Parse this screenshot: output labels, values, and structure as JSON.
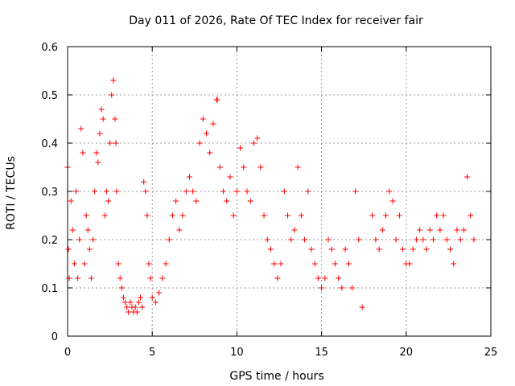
{
  "chart_data": {
    "type": "scatter",
    "title": "Day 011 of 2026, Rate Of TEC Index for receiver fair",
    "xlabel": "GPS time / hours",
    "ylabel": "ROTI / TECUs",
    "xlim": [
      0,
      25
    ],
    "ylim": [
      0,
      0.6
    ],
    "xticks": [
      0,
      5,
      10,
      15,
      20,
      25
    ],
    "yticks": [
      0,
      0.1,
      0.2,
      0.3,
      0.4,
      0.5,
      0.6
    ],
    "xtick_labels": [
      "0",
      "5",
      "10",
      "15",
      "20",
      "25"
    ],
    "ytick_labels": [
      "0",
      "0.1",
      "0.2",
      "0.3",
      "0.4",
      "0.5",
      "0.6"
    ],
    "grid": true,
    "grid_style": "dotted",
    "marker": "+",
    "color": "#ff0000",
    "series": [
      {
        "x": [
          0.0,
          0.05,
          0.1,
          0.2,
          0.3,
          0.4,
          0.5,
          0.6,
          0.7,
          0.8,
          0.9,
          1.0,
          1.1,
          1.2,
          1.3,
          1.4,
          1.5,
          1.6,
          1.7,
          1.8,
          1.9,
          2.0,
          2.1,
          2.2,
          2.3,
          2.4,
          2.5,
          2.6,
          2.7,
          2.8,
          2.85,
          2.9,
          3.0,
          3.1,
          3.2,
          3.3,
          3.4,
          3.5,
          3.6,
          3.7,
          3.8,
          3.9,
          4.0,
          4.1,
          4.2,
          4.3,
          4.4,
          4.5,
          4.6,
          4.7,
          4.8,
          4.9,
          5.0,
          5.2,
          5.4,
          5.6,
          5.8,
          6.0,
          6.2,
          6.4,
          6.6,
          6.8,
          7.0,
          7.2,
          7.4,
          7.6,
          7.8,
          8.0,
          8.2,
          8.4,
          8.6,
          8.8,
          8.85,
          9.0,
          9.2,
          9.4,
          9.6,
          9.8,
          10.0,
          10.2,
          10.4,
          10.6,
          10.8,
          11.0,
          11.2,
          11.4,
          11.6,
          11.8,
          12.0,
          12.2,
          12.4,
          12.6,
          12.8,
          13.0,
          13.2,
          13.4,
          13.6,
          13.8,
          14.0,
          14.2,
          14.4,
          14.6,
          14.8,
          15.0,
          15.2,
          15.4,
          15.6,
          15.8,
          16.0,
          16.2,
          16.4,
          16.6,
          16.8,
          17.0,
          17.2,
          17.4,
          18.0,
          18.2,
          18.4,
          18.6,
          18.8,
          19.0,
          19.2,
          19.4,
          19.6,
          19.8,
          20.0,
          20.2,
          20.4,
          20.6,
          20.8,
          21.0,
          21.2,
          21.4,
          21.6,
          21.8,
          22.0,
          22.2,
          22.4,
          22.6,
          22.8,
          23.0,
          23.2,
          23.4,
          23.6,
          23.8,
          24.0
        ],
        "y": [
          0.35,
          0.18,
          0.12,
          0.28,
          0.22,
          0.15,
          0.3,
          0.12,
          0.2,
          0.43,
          0.38,
          0.15,
          0.25,
          0.22,
          0.18,
          0.12,
          0.2,
          0.3,
          0.38,
          0.36,
          0.42,
          0.47,
          0.45,
          0.25,
          0.3,
          0.28,
          0.4,
          0.5,
          0.53,
          0.45,
          0.4,
          0.3,
          0.15,
          0.12,
          0.1,
          0.08,
          0.07,
          0.06,
          0.05,
          0.07,
          0.06,
          0.05,
          0.06,
          0.05,
          0.07,
          0.08,
          0.06,
          0.32,
          0.3,
          0.25,
          0.15,
          0.12,
          0.08,
          0.07,
          0.09,
          0.12,
          0.15,
          0.2,
          0.25,
          0.28,
          0.22,
          0.25,
          0.3,
          0.33,
          0.3,
          0.28,
          0.4,
          0.45,
          0.42,
          0.38,
          0.44,
          0.49,
          0.49,
          0.35,
          0.3,
          0.28,
          0.33,
          0.25,
          0.3,
          0.39,
          0.35,
          0.3,
          0.28,
          0.4,
          0.41,
          0.35,
          0.25,
          0.2,
          0.18,
          0.15,
          0.12,
          0.15,
          0.3,
          0.25,
          0.2,
          0.22,
          0.35,
          0.25,
          0.2,
          0.3,
          0.18,
          0.15,
          0.12,
          0.1,
          0.12,
          0.2,
          0.18,
          0.15,
          0.12,
          0.1,
          0.18,
          0.15,
          0.1,
          0.3,
          0.2,
          0.06,
          0.25,
          0.2,
          0.18,
          0.22,
          0.25,
          0.3,
          0.28,
          0.2,
          0.25,
          0.18,
          0.15,
          0.15,
          0.18,
          0.2,
          0.22,
          0.2,
          0.18,
          0.22,
          0.2,
          0.25,
          0.22,
          0.25,
          0.2,
          0.18,
          0.15,
          0.22,
          0.2,
          0.22,
          0.33,
          0.25,
          0.2
        ]
      }
    ]
  }
}
